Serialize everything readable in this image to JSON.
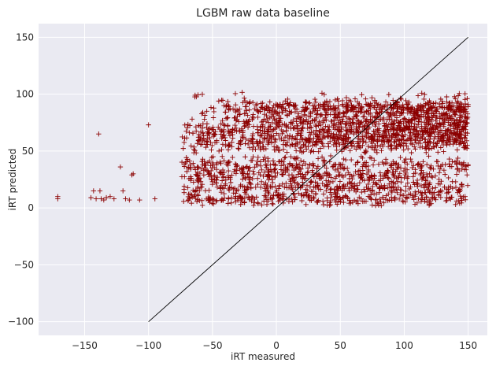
{
  "chart_data": {
    "type": "scatter",
    "title": "LGBM raw data baseline",
    "xlabel": "iRT measured",
    "ylabel": "iRT predicted",
    "xlim": [
      -186,
      165
    ],
    "ylim": [
      -112,
      162
    ],
    "xticks": [
      -150,
      -100,
      -50,
      0,
      50,
      100,
      150
    ],
    "yticks": [
      -100,
      -50,
      0,
      50,
      100,
      150
    ],
    "grid": true,
    "background_color": "#eaeaf2",
    "marker": "+",
    "marker_color": "#8b0000",
    "reference_line": {
      "x": [
        -100,
        150
      ],
      "y": [
        -100,
        150
      ],
      "color": "#000000"
    },
    "sparse_points": [
      [
        -171,
        8
      ],
      [
        -171,
        10
      ],
      [
        -145,
        9
      ],
      [
        -143,
        15
      ],
      [
        -141,
        8
      ],
      [
        -139,
        65
      ],
      [
        -138,
        15
      ],
      [
        -137,
        8
      ],
      [
        -135,
        7
      ],
      [
        -133,
        9
      ],
      [
        -130,
        10
      ],
      [
        -127,
        8
      ],
      [
        -122,
        36
      ],
      [
        -120,
        15
      ],
      [
        -118,
        8
      ],
      [
        -115,
        7
      ],
      [
        -113,
        29
      ],
      [
        -112,
        30
      ],
      [
        -107,
        7
      ],
      [
        -100,
        73
      ],
      [
        -95,
        8
      ]
    ],
    "dense_region": {
      "x_range": [
        -75,
        150
      ],
      "y_range": [
        0,
        110
      ],
      "bands": [
        {
          "y": 8,
          "spread": 4
        },
        {
          "y": 18,
          "spread": 4
        },
        {
          "y": 28,
          "spread": 4
        },
        {
          "y": 38,
          "spread": 5
        },
        {
          "y": 58,
          "spread": 6
        },
        {
          "y": 68,
          "spread": 6
        },
        {
          "y": 78,
          "spread": 6
        },
        {
          "y": 88,
          "spread": 5
        }
      ],
      "gap_y": 47
    }
  }
}
